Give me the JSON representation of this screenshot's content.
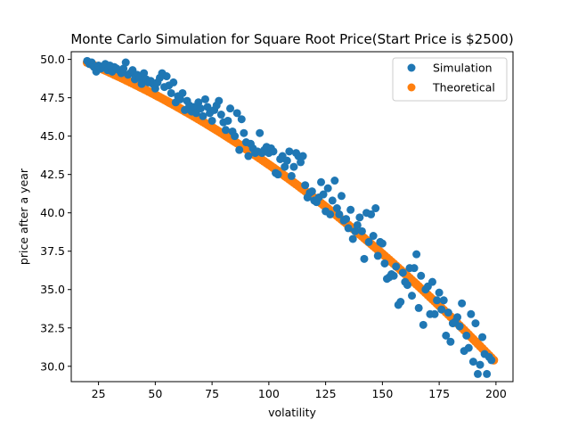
{
  "chart_data": {
    "type": "scatter",
    "title": "Monte Carlo Simulation for Square Root Price(Start Price is $2500)",
    "xlabel": "volatility",
    "ylabel": "price after a year",
    "xlim": [
      13,
      207.5
    ],
    "ylim": [
      29.0,
      50.5
    ],
    "xticks": [
      25,
      50,
      75,
      100,
      125,
      150,
      175,
      200
    ],
    "yticks": [
      30.0,
      32.5,
      35.0,
      37.5,
      40.0,
      42.5,
      45.0,
      47.5,
      50.0
    ],
    "legend_position": "top-right",
    "grid": false,
    "series": [
      {
        "name": "Simulation",
        "color": "#1f77b4",
        "points": [
          [
            20,
            49.9
          ],
          [
            21,
            49.7
          ],
          [
            22,
            49.8
          ],
          [
            23,
            49.5
          ],
          [
            24,
            49.2
          ],
          [
            25,
            49.6
          ],
          [
            26,
            49.4
          ],
          [
            27,
            49.5
          ],
          [
            28,
            49.7
          ],
          [
            29,
            49.3
          ],
          [
            30,
            49.6
          ],
          [
            31,
            49.2
          ],
          [
            32,
            49.5
          ],
          [
            33,
            49.4
          ],
          [
            34,
            49.3
          ],
          [
            35,
            49.1
          ],
          [
            36,
            49.4
          ],
          [
            37,
            49.8
          ],
          [
            38,
            49.0
          ],
          [
            39,
            49.1
          ],
          [
            40,
            49.3
          ],
          [
            41,
            48.7
          ],
          [
            42,
            49.0
          ],
          [
            43,
            48.8
          ],
          [
            44,
            48.4
          ],
          [
            45,
            49.1
          ],
          [
            46,
            48.7
          ],
          [
            47,
            48.5
          ],
          [
            48,
            48.6
          ],
          [
            49,
            48.4
          ],
          [
            50,
            48.1
          ],
          [
            51,
            48.5
          ],
          [
            52,
            48.8
          ],
          [
            53,
            49.1
          ],
          [
            54,
            48.2
          ],
          [
            55,
            48.9
          ],
          [
            56,
            48.3
          ],
          [
            57,
            47.8
          ],
          [
            58,
            48.5
          ],
          [
            59,
            47.2
          ],
          [
            60,
            47.6
          ],
          [
            61,
            47.4
          ],
          [
            62,
            47.8
          ],
          [
            63,
            46.7
          ],
          [
            64,
            47.3
          ],
          [
            65,
            47.0
          ],
          [
            66,
            46.6
          ],
          [
            67,
            46.9
          ],
          [
            68,
            46.5
          ],
          [
            69,
            47.2
          ],
          [
            70,
            46.8
          ],
          [
            71,
            46.3
          ],
          [
            72,
            47.4
          ],
          [
            73,
            46.9
          ],
          [
            74,
            46.5
          ],
          [
            75,
            46.0
          ],
          [
            76,
            46.7
          ],
          [
            77,
            47.0
          ],
          [
            78,
            47.3
          ],
          [
            79,
            46.4
          ],
          [
            80,
            45.9
          ],
          [
            81,
            45.4
          ],
          [
            82,
            46.0
          ],
          [
            83,
            46.8
          ],
          [
            84,
            45.3
          ],
          [
            85,
            45.0
          ],
          [
            86,
            46.5
          ],
          [
            87,
            44.1
          ],
          [
            88,
            46.1
          ],
          [
            89,
            45.2
          ],
          [
            90,
            44.6
          ],
          [
            91,
            43.7
          ],
          [
            92,
            44.5
          ],
          [
            93,
            44.2
          ],
          [
            94,
            43.9
          ],
          [
            95,
            44.0
          ],
          [
            96,
            45.2
          ],
          [
            97,
            43.9
          ],
          [
            98,
            44.1
          ],
          [
            99,
            44.3
          ],
          [
            100,
            43.9
          ],
          [
            101,
            44.2
          ],
          [
            102,
            44.0
          ],
          [
            103,
            42.6
          ],
          [
            104,
            42.5
          ],
          [
            105,
            43.5
          ],
          [
            106,
            43.7
          ],
          [
            107,
            43.0
          ],
          [
            108,
            43.4
          ],
          [
            109,
            44.0
          ],
          [
            110,
            42.4
          ],
          [
            111,
            43.0
          ],
          [
            112,
            43.9
          ],
          [
            113,
            43.7
          ],
          [
            114,
            43.3
          ],
          [
            115,
            43.7
          ],
          [
            116,
            41.8
          ],
          [
            117,
            41.0
          ],
          [
            118,
            41.3
          ],
          [
            119,
            41.4
          ],
          [
            120,
            40.8
          ],
          [
            121,
            40.7
          ],
          [
            122,
            41.0
          ],
          [
            123,
            42.0
          ],
          [
            124,
            41.2
          ],
          [
            125,
            40.1
          ],
          [
            126,
            41.6
          ],
          [
            127,
            39.9
          ],
          [
            128,
            40.8
          ],
          [
            129,
            42.1
          ],
          [
            130,
            40.3
          ],
          [
            131,
            39.9
          ],
          [
            132,
            41.1
          ],
          [
            133,
            39.5
          ],
          [
            134,
            39.6
          ],
          [
            135,
            39.0
          ],
          [
            136,
            40.2
          ],
          [
            137,
            38.3
          ],
          [
            138,
            38.8
          ],
          [
            139,
            39.2
          ],
          [
            140,
            39.7
          ],
          [
            141,
            38.8
          ],
          [
            142,
            37.0
          ],
          [
            143,
            40.0
          ],
          [
            144,
            38.1
          ],
          [
            145,
            39.9
          ],
          [
            146,
            38.5
          ],
          [
            147,
            40.3
          ],
          [
            148,
            37.2
          ],
          [
            149,
            38.1
          ],
          [
            150,
            38.0
          ],
          [
            151,
            36.7
          ],
          [
            152,
            35.7
          ],
          [
            153,
            35.8
          ],
          [
            154,
            36.0
          ],
          [
            155,
            35.9
          ],
          [
            156,
            36.5
          ],
          [
            157,
            34.0
          ],
          [
            158,
            34.2
          ],
          [
            159,
            36.1
          ],
          [
            160,
            35.5
          ],
          [
            161,
            35.3
          ],
          [
            162,
            36.4
          ],
          [
            163,
            34.6
          ],
          [
            164,
            36.4
          ],
          [
            165,
            37.3
          ],
          [
            166,
            33.8
          ],
          [
            167,
            35.9
          ],
          [
            168,
            32.7
          ],
          [
            169,
            35.0
          ],
          [
            170,
            35.2
          ],
          [
            171,
            33.4
          ],
          [
            172,
            35.5
          ],
          [
            173,
            33.4
          ],
          [
            174,
            34.3
          ],
          [
            175,
            34.8
          ],
          [
            176,
            33.7
          ],
          [
            177,
            34.3
          ],
          [
            178,
            32.0
          ],
          [
            179,
            33.5
          ],
          [
            180,
            31.6
          ],
          [
            181,
            32.8
          ],
          [
            182,
            32.9
          ],
          [
            183,
            33.2
          ],
          [
            184,
            32.6
          ],
          [
            185,
            34.1
          ],
          [
            186,
            31.0
          ],
          [
            187,
            32.0
          ],
          [
            188,
            31.2
          ],
          [
            189,
            33.4
          ],
          [
            190,
            30.3
          ],
          [
            191,
            32.8
          ],
          [
            192,
            29.5
          ],
          [
            193,
            30.1
          ],
          [
            194,
            31.9
          ],
          [
            195,
            30.8
          ],
          [
            196,
            29.5
          ],
          [
            197,
            30.6
          ],
          [
            198,
            30.4
          ]
        ]
      },
      {
        "name": "Theoretical",
        "color": "#ff7f0e",
        "curve": {
          "x_start": 20,
          "x_end": 199,
          "y_start": 49.8,
          "y_end": 30.4,
          "count": 180,
          "shape": "decreasing-concave"
        }
      }
    ]
  }
}
